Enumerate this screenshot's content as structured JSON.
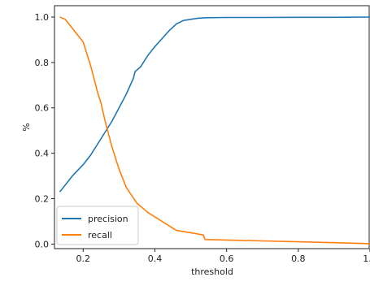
{
  "chart_data": {
    "type": "line",
    "xlabel": "threshold",
    "ylabel": "%",
    "xlim": [
      0.12,
      1.0
    ],
    "ylim": [
      -0.02,
      1.05
    ],
    "x_ticks": [
      0.2,
      0.4,
      0.6,
      0.8,
      1.0
    ],
    "x_tick_labels": [
      "0.2",
      "0.4",
      "0.6",
      "0.8",
      "1.0"
    ],
    "y_ticks": [
      0.0,
      0.2,
      0.4,
      0.6,
      0.8,
      1.0
    ],
    "y_tick_labels": [
      "0.0",
      "0.2",
      "0.4",
      "0.6",
      "0.8",
      "1.0"
    ],
    "grid": false,
    "legend_position": "lower-left",
    "series": [
      {
        "name": "precision",
        "color": "#1f77b4",
        "x": [
          0.135,
          0.15,
          0.17,
          0.2,
          0.22,
          0.24,
          0.26,
          0.28,
          0.3,
          0.32,
          0.34,
          0.345,
          0.36,
          0.38,
          0.4,
          0.42,
          0.44,
          0.46,
          0.48,
          0.5,
          0.52,
          0.54,
          0.6,
          0.7,
          0.8,
          0.9,
          1.0
        ],
        "values": [
          0.23,
          0.26,
          0.3,
          0.35,
          0.39,
          0.44,
          0.49,
          0.54,
          0.6,
          0.66,
          0.73,
          0.76,
          0.78,
          0.83,
          0.87,
          0.905,
          0.94,
          0.97,
          0.985,
          0.99,
          0.995,
          0.997,
          0.998,
          0.998,
          0.999,
          0.999,
          1.0
        ]
      },
      {
        "name": "recall",
        "color": "#ff7f0e",
        "x": [
          0.135,
          0.15,
          0.17,
          0.2,
          0.22,
          0.24,
          0.25,
          0.26,
          0.28,
          0.3,
          0.32,
          0.35,
          0.38,
          0.4,
          0.43,
          0.46,
          0.5,
          0.535,
          0.54,
          0.6,
          0.7,
          0.8,
          0.9,
          1.0
        ],
        "values": [
          1.0,
          0.99,
          0.95,
          0.89,
          0.79,
          0.67,
          0.62,
          0.55,
          0.43,
          0.33,
          0.25,
          0.18,
          0.14,
          0.12,
          0.09,
          0.06,
          0.05,
          0.04,
          0.02,
          0.018,
          0.014,
          0.01,
          0.006,
          0.002
        ]
      }
    ]
  }
}
